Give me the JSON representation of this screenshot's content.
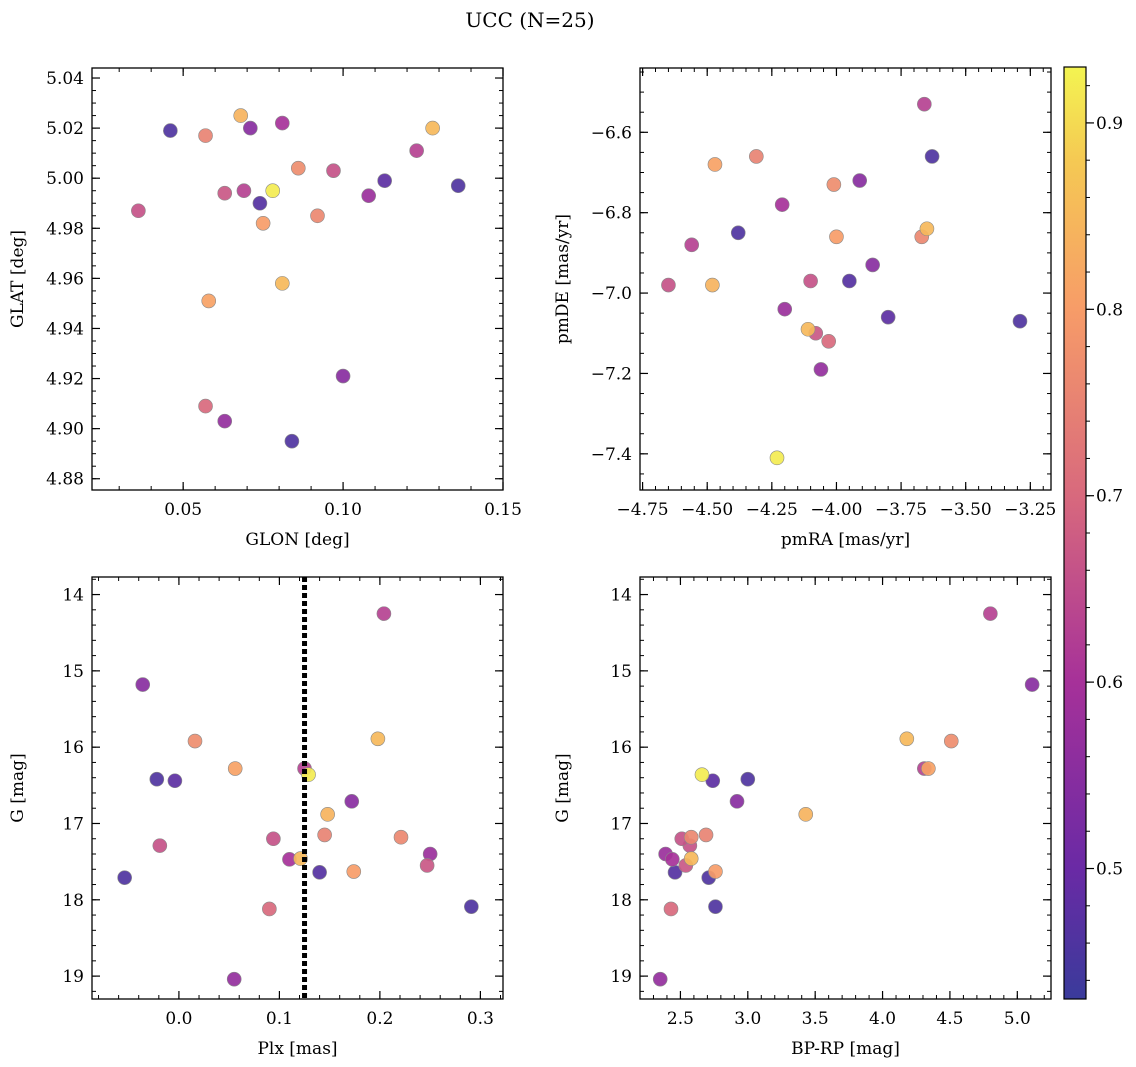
{
  "chart_data": {
    "title": "UCC (N=25)",
    "colorbar": {
      "colormap": "plasma",
      "range": [
        0.43,
        0.93
      ],
      "ticks": [
        0.5,
        0.6,
        0.7,
        0.8,
        0.9
      ],
      "tick_labels": [
        "0.5",
        "0.6",
        "0.7",
        "0.8",
        "0.9"
      ]
    },
    "members": [
      {
        "glon": 0.046,
        "glat": 5.019,
        "pmra": -4.38,
        "pmde": -6.85,
        "plx": -0.022,
        "g": 16.42,
        "bprp": 3.0,
        "prob": 0.46
      },
      {
        "glon": 0.036,
        "glat": 4.987,
        "pmra": -4.65,
        "pmde": -6.98,
        "plx": -0.019,
        "g": 17.29,
        "bprp": 2.57,
        "prob": 0.66
      },
      {
        "glon": 0.057,
        "glat": 5.017,
        "pmra": -4.31,
        "pmde": -6.66,
        "plx": 0.145,
        "g": 17.15,
        "bprp": 2.69,
        "prob": 0.75
      },
      {
        "glon": 0.068,
        "glat": 5.025,
        "pmra": -4.48,
        "pmde": -6.98,
        "plx": 0.148,
        "g": 16.88,
        "bprp": 3.43,
        "prob": 0.84
      },
      {
        "glon": 0.071,
        "glat": 5.02,
        "pmra": -3.91,
        "pmde": -6.72,
        "plx": 0.172,
        "g": 16.71,
        "bprp": 2.92,
        "prob": 0.55
      },
      {
        "glon": 0.081,
        "glat": 5.022,
        "pmra": -4.21,
        "pmde": -6.78,
        "plx": 0.11,
        "g": 17.47,
        "bprp": 2.44,
        "prob": 0.6
      },
      {
        "glon": 0.086,
        "glat": 5.004,
        "pmra": -4.01,
        "pmde": -6.73,
        "plx": 0.016,
        "g": 15.92,
        "bprp": 4.51,
        "prob": 0.77
      },
      {
        "glon": 0.097,
        "glat": 5.003,
        "pmra": -4.1,
        "pmde": -6.97,
        "plx": 0.094,
        "g": 17.2,
        "bprp": 2.51,
        "prob": 0.66
      },
      {
        "glon": 0.063,
        "glat": 4.994,
        "pmra": -4.08,
        "pmde": -7.1,
        "plx": 0.247,
        "g": 17.55,
        "bprp": 2.54,
        "prob": 0.67
      },
      {
        "glon": 0.069,
        "glat": 4.995,
        "pmra": -4.56,
        "pmde": -6.88,
        "plx": 0.125,
        "g": 16.28,
        "bprp": 4.31,
        "prob": 0.63
      },
      {
        "glon": 0.074,
        "glat": 4.99,
        "pmra": -3.95,
        "pmde": -6.97,
        "plx": 0.14,
        "g": 17.64,
        "bprp": 2.46,
        "prob": 0.47
      },
      {
        "glon": 0.078,
        "glat": 4.995,
        "pmra": -4.23,
        "pmde": -7.41,
        "plx": 0.129,
        "g": 16.36,
        "bprp": 2.66,
        "prob": 0.92
      },
      {
        "glon": 0.075,
        "glat": 4.982,
        "pmra": -4.0,
        "pmde": -6.86,
        "plx": 0.174,
        "g": 17.63,
        "bprp": 2.76,
        "prob": 0.8
      },
      {
        "glon": 0.092,
        "glat": 4.985,
        "pmra": -3.67,
        "pmde": -6.86,
        "plx": 0.221,
        "g": 17.18,
        "bprp": 2.58,
        "prob": 0.76
      },
      {
        "glon": 0.108,
        "glat": 4.993,
        "pmra": -4.2,
        "pmde": -7.04,
        "plx": 0.25,
        "g": 17.4,
        "bprp": 2.39,
        "prob": 0.58
      },
      {
        "glon": 0.113,
        "glat": 4.999,
        "pmra": -3.8,
        "pmde": -7.06,
        "plx": -0.004,
        "g": 16.44,
        "bprp": 2.74,
        "prob": 0.48
      },
      {
        "glon": 0.123,
        "glat": 5.011,
        "pmra": -3.66,
        "pmde": -6.53,
        "plx": 0.204,
        "g": 14.25,
        "bprp": 4.8,
        "prob": 0.63
      },
      {
        "glon": 0.128,
        "glat": 5.02,
        "pmra": -3.65,
        "pmde": -6.84,
        "plx": 0.198,
        "g": 15.89,
        "bprp": 4.18,
        "prob": 0.85
      },
      {
        "glon": 0.136,
        "glat": 4.997,
        "pmra": -3.29,
        "pmde": -7.07,
        "plx": -0.054,
        "g": 17.71,
        "bprp": 2.71,
        "prob": 0.46
      },
      {
        "glon": 0.058,
        "glat": 4.951,
        "pmra": -4.47,
        "pmde": -6.68,
        "plx": 0.056,
        "g": 16.28,
        "bprp": 4.34,
        "prob": 0.81
      },
      {
        "glon": 0.081,
        "glat": 4.958,
        "pmra": -4.11,
        "pmde": -7.09,
        "plx": 0.121,
        "g": 17.46,
        "bprp": 2.58,
        "prob": 0.85
      },
      {
        "glon": 0.1,
        "glat": 4.921,
        "pmra": -3.86,
        "pmde": -6.93,
        "plx": -0.036,
        "g": 15.18,
        "bprp": 5.11,
        "prob": 0.55
      },
      {
        "glon": 0.057,
        "glat": 4.909,
        "pmra": -4.03,
        "pmde": -7.12,
        "plx": 0.09,
        "g": 18.12,
        "bprp": 2.43,
        "prob": 0.7
      },
      {
        "glon": 0.063,
        "glat": 4.903,
        "pmra": -4.06,
        "pmde": -7.19,
        "plx": 0.055,
        "g": 19.04,
        "bprp": 2.35,
        "prob": 0.57
      },
      {
        "glon": 0.084,
        "glat": 4.895,
        "pmra": -3.63,
        "pmde": -6.66,
        "plx": 0.291,
        "g": 18.09,
        "bprp": 2.76,
        "prob": 0.46
      }
    ],
    "panels": [
      {
        "type": "scatter",
        "x_key": "glon",
        "y_key": "glat",
        "xlabel": "GLON [deg]",
        "ylabel": "GLAT [deg]",
        "xlim": [
          0.0215,
          0.15
        ],
        "ylim": [
          4.8755,
          5.044
        ],
        "y_inverted": false,
        "xticks": [
          0.05,
          0.1,
          0.15
        ],
        "xtick_labels": [
          "0.05",
          "0.10",
          "0.15"
        ],
        "yticks": [
          4.88,
          4.9,
          4.92,
          4.94,
          4.96,
          4.98,
          5.0,
          5.02,
          5.04
        ],
        "ytick_labels": [
          "4.88",
          "4.90",
          "4.92",
          "4.94",
          "4.96",
          "4.98",
          "5.00",
          "5.02",
          "5.04"
        ],
        "xminor": 0.01,
        "yminor": 0.005
      },
      {
        "type": "scatter",
        "x_key": "pmra",
        "y_key": "pmde",
        "xlabel": "pmRA [mas/yr]",
        "ylabel": "pmDE [mas/yr]",
        "xlim": [
          -4.76,
          -3.17
        ],
        "ylim": [
          -7.49,
          -6.44
        ],
        "y_inverted": false,
        "xticks": [
          -4.75,
          -4.5,
          -4.25,
          -4.0,
          -3.75,
          -3.5,
          -3.25
        ],
        "xtick_labels": [
          "−4.75",
          "−4.50",
          "−4.25",
          "−4.00",
          "−3.75",
          "−3.50",
          "−3.25"
        ],
        "yticks": [
          -7.4,
          -7.2,
          -7.0,
          -6.8,
          -6.6
        ],
        "ytick_labels": [
          "−7.4",
          "−7.2",
          "−7.0",
          "−6.8",
          "−6.6"
        ],
        "xminor": 0.05,
        "yminor": 0.05
      },
      {
        "type": "scatter",
        "x_key": "plx",
        "y_key": "g",
        "xlabel": "Plx [mas]",
        "ylabel": "G [mag]",
        "xlim": [
          -0.0865,
          0.3225
        ],
        "ylim": [
          13.77,
          19.3
        ],
        "y_inverted": true,
        "xticks": [
          0.0,
          0.1,
          0.2,
          0.3
        ],
        "xtick_labels": [
          "0.0",
          "0.1",
          "0.2",
          "0.3"
        ],
        "yticks": [
          14,
          15,
          16,
          17,
          18,
          19
        ],
        "ytick_labels": [
          "14",
          "15",
          "16",
          "17",
          "18",
          "19"
        ],
        "xminor": 0.02,
        "yminor": 0.2,
        "vline": {
          "x": 0.125,
          "style": "dotted"
        }
      },
      {
        "type": "scatter",
        "x_key": "bprp",
        "y_key": "g",
        "xlabel": "BP-RP [mag]",
        "ylabel": "G [mag]",
        "xlim": [
          2.2,
          5.25
        ],
        "ylim": [
          13.77,
          19.3
        ],
        "y_inverted": true,
        "xticks": [
          2.5,
          3.0,
          3.5,
          4.0,
          4.5,
          5.0
        ],
        "xtick_labels": [
          "2.5",
          "3.0",
          "3.5",
          "4.0",
          "4.5",
          "5.0"
        ],
        "yticks": [
          14,
          15,
          16,
          17,
          18,
          19
        ],
        "ytick_labels": [
          "14",
          "15",
          "16",
          "17",
          "18",
          "19"
        ],
        "xminor": 0.1,
        "yminor": 0.2
      }
    ]
  }
}
